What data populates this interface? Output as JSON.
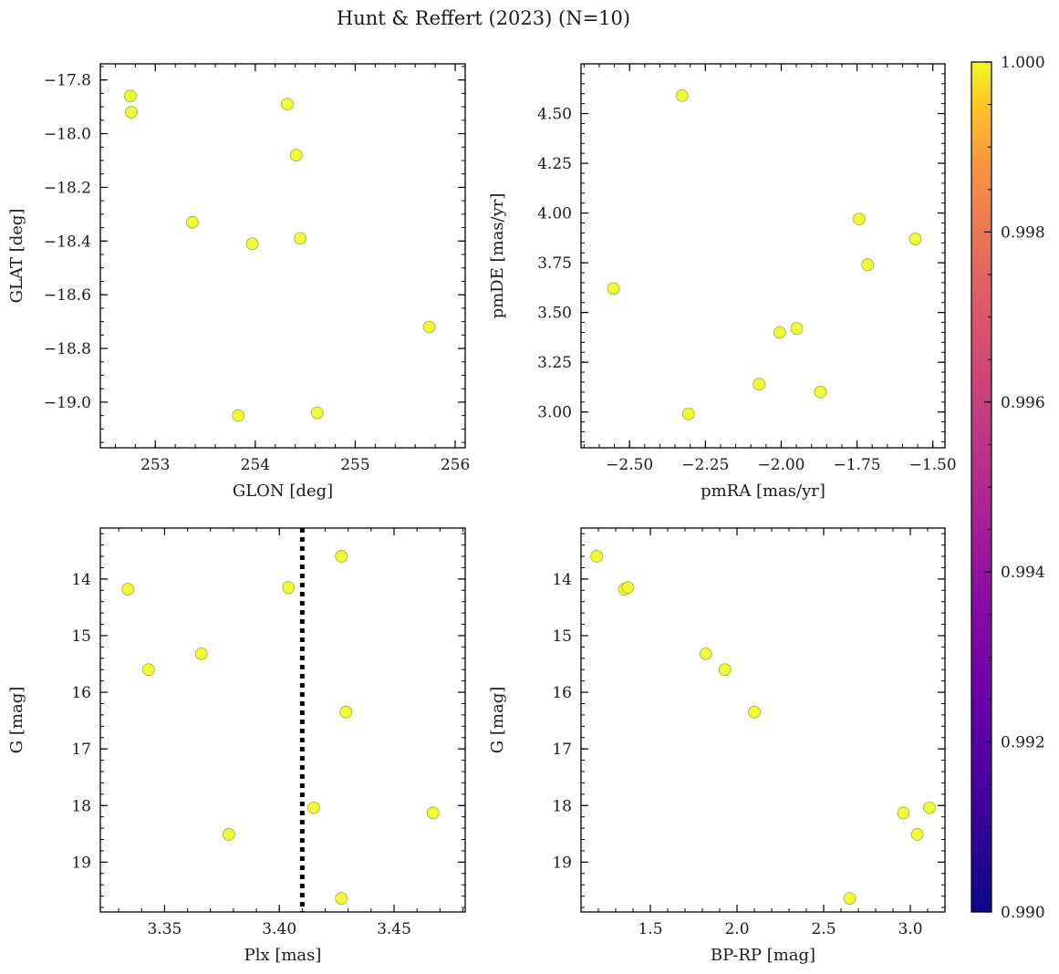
{
  "figure": {
    "title": "Hunt & Reffert (2023) (N=10)",
    "point_color": "#f0f921",
    "point_edge": "#a8a83a"
  },
  "colorbar": {
    "range": [
      0.99,
      1.0
    ],
    "ticks": [
      0.99,
      0.992,
      0.994,
      0.996,
      0.998,
      1.0
    ],
    "tick_labels": [
      "0.990",
      "0.992",
      "0.994",
      "0.996",
      "0.998",
      "1.000"
    ],
    "colormap": "plasma"
  },
  "chart_data": [
    {
      "type": "scatter",
      "name": "glon-glat",
      "xlabel": "GLON [deg]",
      "ylabel": "GLAT [deg]",
      "xlim": [
        252.45,
        256.1
      ],
      "ylim": [
        -19.17,
        -17.74
      ],
      "invert_y": false,
      "x_ticks": [
        253,
        254,
        255,
        256
      ],
      "x_tick_labels": [
        "253",
        "254",
        "255",
        "256"
      ],
      "y_ticks": [
        -17.8,
        -18.0,
        -18.2,
        -18.4,
        -18.6,
        -18.8,
        -19.0
      ],
      "y_tick_labels": [
        "−17.8",
        "−18.0",
        "−18.2",
        "−18.4",
        "−18.6",
        "−18.8",
        "−19.0"
      ],
      "x_minor_step": 0.2,
      "y_minor_step": 0.05,
      "x": [
        252.75,
        252.76,
        254.32,
        254.41,
        253.37,
        253.97,
        254.45,
        255.74,
        253.83,
        254.62
      ],
      "y": [
        -17.86,
        -17.92,
        -17.89,
        -18.08,
        -18.33,
        -18.41,
        -18.39,
        -18.72,
        -19.05,
        -19.04
      ]
    },
    {
      "type": "scatter",
      "name": "pmra-pmde",
      "xlabel": "pmRA [mas/yr]",
      "ylabel": "pmDE [mas/yr]",
      "xlim": [
        -2.66,
        -1.46
      ],
      "ylim": [
        2.82,
        4.75
      ],
      "invert_y": false,
      "x_ticks": [
        -2.5,
        -2.25,
        -2.0,
        -1.75,
        -1.5
      ],
      "x_tick_labels": [
        "−2.50",
        "−2.25",
        "−2.00",
        "−1.75",
        "−1.50"
      ],
      "y_ticks": [
        3.0,
        3.25,
        3.5,
        3.75,
        4.0,
        4.25,
        4.5
      ],
      "y_tick_labels": [
        "3.00",
        "3.25",
        "3.50",
        "3.75",
        "4.00",
        "4.25",
        "4.50"
      ],
      "x_minor_step": 0.05,
      "y_minor_step": 0.05,
      "x": [
        -2.327,
        -2.553,
        -1.743,
        -1.558,
        -1.715,
        -2.005,
        -1.949,
        -2.073,
        -1.871,
        -2.306
      ],
      "y": [
        4.59,
        3.62,
        3.97,
        3.87,
        3.74,
        3.4,
        3.42,
        3.14,
        3.1,
        2.99
      ]
    },
    {
      "type": "scatter",
      "name": "plx-g",
      "xlabel": "Plx [mas]",
      "ylabel": "G [mag]",
      "xlim": [
        3.322,
        3.481
      ],
      "ylim": [
        13.1,
        19.88
      ],
      "invert_y": true,
      "x_ticks": [
        3.35,
        3.4,
        3.45
      ],
      "x_tick_labels": [
        "3.35",
        "3.40",
        "3.45"
      ],
      "y_ticks": [
        14,
        15,
        16,
        17,
        18,
        19
      ],
      "y_tick_labels": [
        "14",
        "15",
        "16",
        "17",
        "18",
        "19"
      ],
      "x_minor_step": 0.01,
      "y_minor_step": 0.2,
      "vline_x": 3.41,
      "x": [
        3.427,
        3.334,
        3.404,
        3.366,
        3.343,
        3.429,
        3.415,
        3.467,
        3.378,
        3.427
      ],
      "y": [
        13.6,
        14.18,
        14.15,
        15.32,
        15.6,
        16.35,
        18.04,
        18.13,
        18.51,
        19.64
      ]
    },
    {
      "type": "scatter",
      "name": "bprp-g",
      "xlabel": "BP-RP [mag]",
      "ylabel": "G [mag]",
      "xlim": [
        1.1,
        3.2
      ],
      "ylim": [
        13.1,
        19.88
      ],
      "invert_y": true,
      "x_ticks": [
        1.5,
        2.0,
        2.5,
        3.0
      ],
      "x_tick_labels": [
        "1.5",
        "2.0",
        "2.5",
        "3.0"
      ],
      "y_ticks": [
        14,
        15,
        16,
        17,
        18,
        19
      ],
      "y_tick_labels": [
        "14",
        "15",
        "16",
        "17",
        "18",
        "19"
      ],
      "x_minor_step": 0.1,
      "y_minor_step": 0.2,
      "x": [
        1.19,
        1.35,
        1.37,
        1.82,
        1.93,
        2.1,
        3.11,
        2.96,
        3.04,
        2.65
      ],
      "y": [
        13.6,
        14.18,
        14.15,
        15.32,
        15.6,
        16.35,
        18.04,
        18.13,
        18.51,
        19.64
      ]
    }
  ]
}
